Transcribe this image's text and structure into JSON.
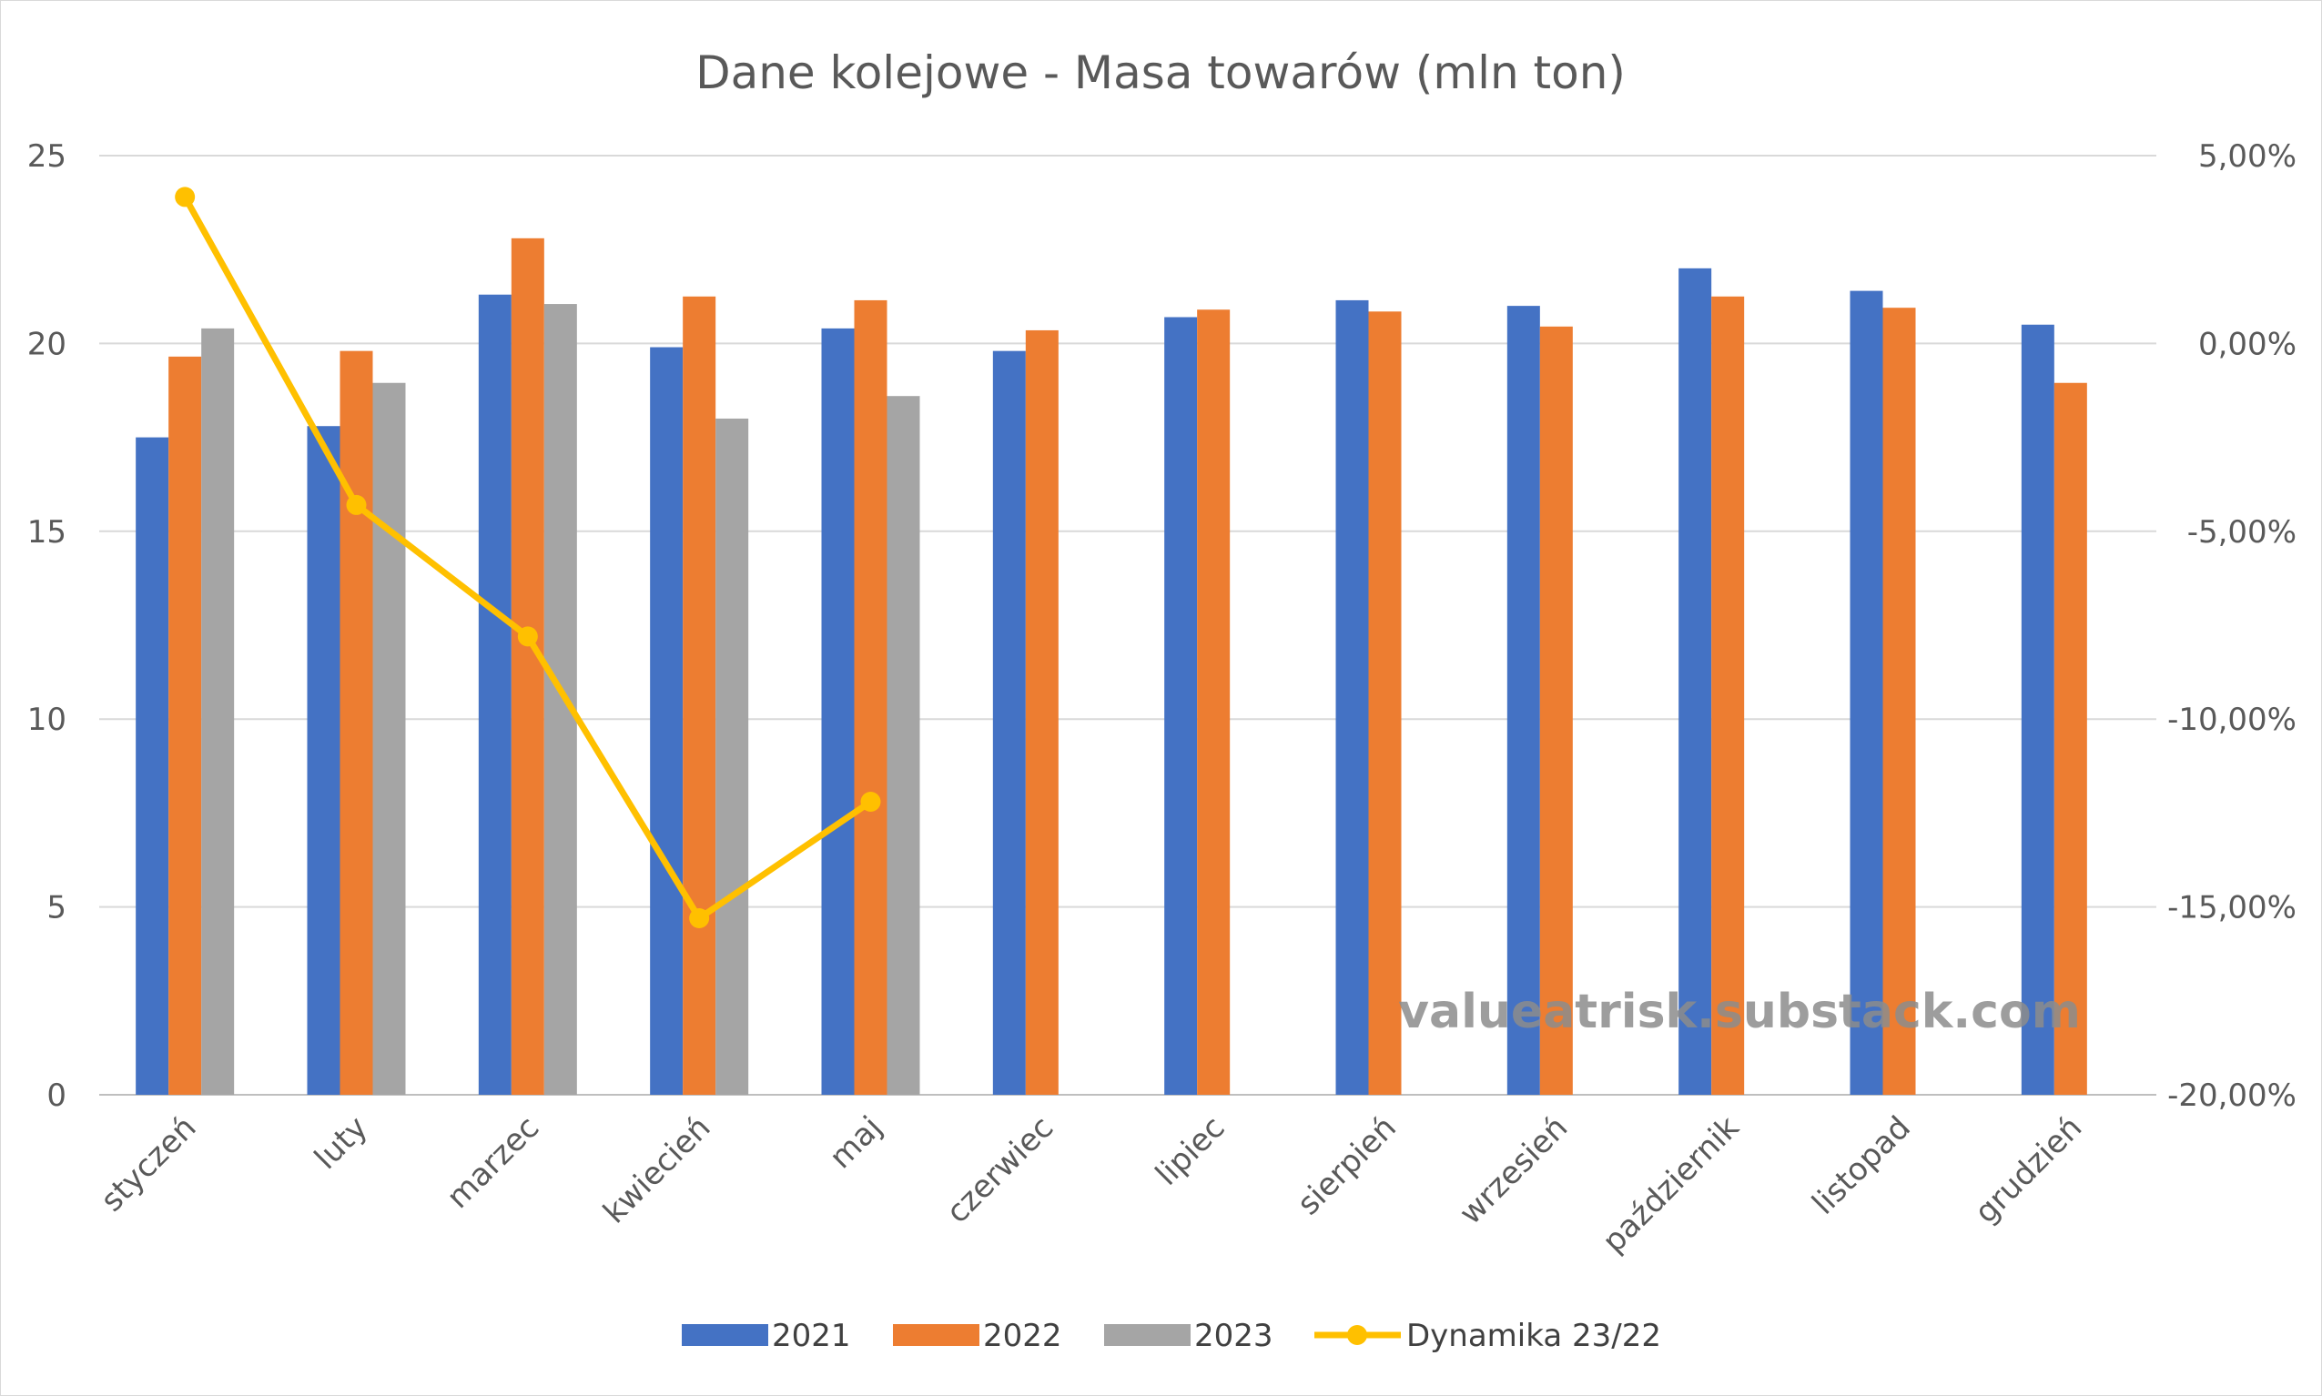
{
  "watermark": "valueatrisk.substack.com",
  "chart_data": {
    "type": "bar",
    "title": "Dane kolejowe - Masa towarów (mln ton)",
    "categories": [
      "styczeń",
      "luty",
      "marzec",
      "kwiecień",
      "maj",
      "czerwiec",
      "lipiec",
      "sierpień",
      "wrzesień",
      "październik",
      "listopad",
      "grudzień"
    ],
    "series": [
      {
        "name": "2021",
        "type": "bar",
        "axis": "left",
        "color": "#4472C4",
        "values": [
          17.5,
          17.8,
          21.3,
          19.9,
          20.4,
          19.8,
          20.7,
          21.15,
          21.0,
          22.0,
          21.4,
          20.5
        ]
      },
      {
        "name": "2022",
        "type": "bar",
        "axis": "left",
        "color": "#ED7D31",
        "values": [
          19.65,
          19.8,
          22.8,
          21.25,
          21.15,
          20.35,
          20.9,
          20.85,
          20.45,
          21.25,
          20.95,
          18.95
        ]
      },
      {
        "name": "2023",
        "type": "bar",
        "axis": "left",
        "color": "#A5A5A5",
        "values": [
          20.4,
          18.95,
          21.05,
          18.0,
          18.6,
          null,
          null,
          null,
          null,
          null,
          null,
          null
        ]
      },
      {
        "name": "Dynamika 23/22",
        "type": "line",
        "axis": "right",
        "color": "#FFC000",
        "values": [
          3.9,
          -4.3,
          -7.8,
          -15.3,
          -12.2,
          null,
          null,
          null,
          null,
          null,
          null,
          null
        ]
      }
    ],
    "y_left": {
      "min": 0,
      "max": 25,
      "step": 5,
      "ticks": [
        "0",
        "5",
        "10",
        "15",
        "20",
        "25"
      ]
    },
    "y_right": {
      "min": -20,
      "max": 5,
      "step": 5,
      "unit": "%",
      "ticks": [
        "-20,00%",
        "-15,00%",
        "-10,00%",
        "-5,00%",
        "0,00%",
        "5,00%"
      ]
    },
    "grid": true,
    "legend": "bottom"
  }
}
